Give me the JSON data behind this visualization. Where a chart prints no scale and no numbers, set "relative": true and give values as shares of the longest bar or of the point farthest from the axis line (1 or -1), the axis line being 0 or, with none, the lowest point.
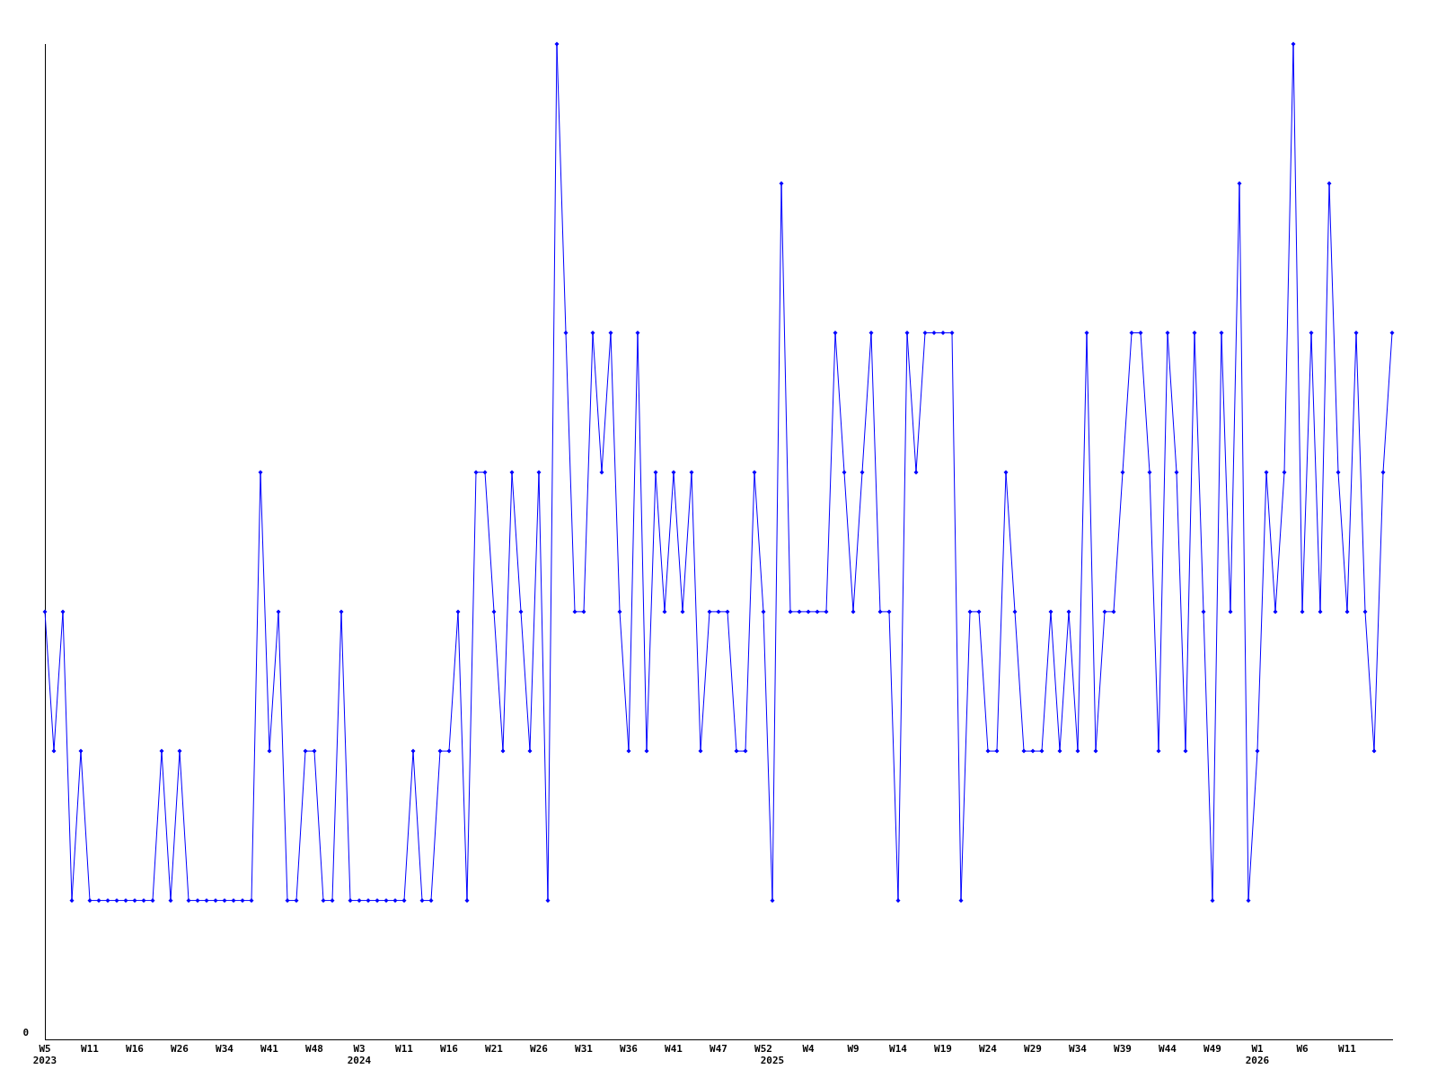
{
  "chart_data": {
    "type": "line",
    "relative": true,
    "marker": "diamond",
    "grid": false,
    "legend": false,
    "annotations": [
      "0"
    ],
    "categories": [
      "W5\n2023",
      null,
      null,
      null,
      null,
      "W11",
      null,
      null,
      null,
      null,
      "W16",
      null,
      null,
      null,
      null,
      "W26",
      null,
      null,
      null,
      null,
      "W34",
      null,
      null,
      null,
      null,
      "W41",
      null,
      null,
      null,
      null,
      "W48",
      null,
      null,
      null,
      null,
      "W3\n2024",
      null,
      null,
      null,
      null,
      "W11",
      null,
      null,
      null,
      null,
      "W16",
      null,
      null,
      null,
      null,
      "W21",
      null,
      null,
      null,
      null,
      "W26",
      null,
      null,
      null,
      null,
      "W31",
      null,
      null,
      null,
      null,
      "W36",
      null,
      null,
      null,
      null,
      "W41",
      null,
      null,
      null,
      null,
      "W47",
      null,
      null,
      null,
      null,
      "W52",
      "\n2025",
      null,
      null,
      null,
      "W4",
      null,
      null,
      null,
      null,
      "W9",
      null,
      null,
      null,
      null,
      "W14",
      null,
      null,
      null,
      null,
      "W19",
      null,
      null,
      null,
      null,
      "W24",
      null,
      null,
      null,
      null,
      "W29",
      null,
      null,
      null,
      null,
      "W34",
      null,
      null,
      null,
      null,
      "W39",
      null,
      null,
      null,
      null,
      "W44",
      null,
      null,
      null,
      null,
      "W49",
      null,
      null,
      null,
      null,
      "W1\n2026",
      null,
      null,
      null,
      null,
      "W6",
      null,
      null,
      null,
      null,
      "W11",
      null,
      null,
      null,
      null,
      null
    ],
    "series": [
      {
        "color": "#0000ff",
        "values": [
          0.43,
          0.29,
          0.43,
          0.14,
          0.29,
          0.14,
          0.14,
          0.14,
          0.14,
          0.14,
          0.14,
          0.14,
          0.14,
          0.29,
          0.14,
          0.29,
          0.14,
          0.14,
          0.14,
          0.14,
          0.14,
          0.14,
          0.14,
          0.14,
          0.57,
          0.29,
          0.43,
          0.14,
          0.14,
          0.29,
          0.29,
          0.14,
          0.14,
          0.43,
          0.14,
          0.14,
          0.14,
          0.14,
          0.14,
          0.14,
          0.14,
          0.29,
          0.14,
          0.14,
          0.29,
          0.29,
          0.43,
          0.14,
          0.57,
          0.57,
          0.43,
          0.29,
          0.57,
          0.43,
          0.29,
          0.57,
          0.14,
          1,
          0.71,
          0.43,
          0.43,
          0.71,
          0.57,
          0.71,
          0.43,
          0.29,
          0.71,
          0.29,
          0.57,
          0.43,
          0.57,
          0.43,
          0.57,
          0.29,
          0.43,
          0.43,
          0.43,
          0.29,
          0.29,
          0.57,
          0.43,
          0.14,
          0.86,
          0.43,
          0.43,
          0.43,
          0.43,
          0.43,
          0.71,
          0.57,
          0.43,
          0.57,
          0.71,
          0.43,
          0.43,
          0.14,
          0.71,
          0.57,
          0.71,
          0.71,
          0.71,
          0.71,
          0.14,
          0.43,
          0.43,
          0.29,
          0.29,
          0.57,
          0.43,
          0.29,
          0.29,
          0.29,
          0.43,
          0.29,
          0.43,
          0.29,
          0.71,
          0.29,
          0.43,
          0.43,
          0.57,
          0.71,
          0.71,
          0.57,
          0.29,
          0.71,
          0.57,
          0.29,
          0.71,
          0.43,
          0.14,
          0.71,
          0.43,
          0.86,
          0.14,
          0.29,
          0.57,
          0.43,
          0.57,
          1,
          0.43,
          0.71,
          0.43,
          0.86,
          0.57,
          0.43,
          0.71,
          0.43,
          0.29,
          0.57,
          0.71
        ]
      }
    ]
  }
}
